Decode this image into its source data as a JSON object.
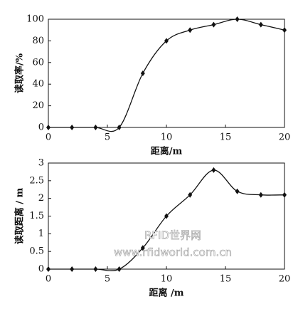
{
  "chart_data": [
    {
      "type": "line",
      "ylabel": "读取率/%",
      "xlabel": "距离/m",
      "x": [
        0,
        2,
        4,
        6,
        8,
        10,
        12,
        14,
        16,
        18,
        20
      ],
      "series": [
        {
          "color": "#111111",
          "values": [
            0,
            0,
            0,
            0,
            50,
            80,
            90,
            95,
            100,
            95,
            90
          ]
        }
      ],
      "xlim": [
        0,
        20
      ],
      "xticks": [
        0,
        5,
        10,
        15,
        20
      ],
      "ylim": [
        0,
        100
      ],
      "yticks": [
        0,
        20,
        40,
        60,
        80,
        100
      ]
    },
    {
      "type": "line",
      "ylabel": "读取距离 / m",
      "xlabel": "距离 /m",
      "x": [
        0,
        2,
        4,
        6,
        8,
        10,
        12,
        14,
        16,
        18,
        20
      ],
      "series": [
        {
          "color": "#111111",
          "values": [
            0,
            0,
            0,
            0,
            0.6,
            1.5,
            2.1,
            2.8,
            2.2,
            2.1,
            2.1
          ]
        }
      ],
      "xlim": [
        0,
        20
      ],
      "xticks": [
        0,
        5,
        10,
        15,
        20
      ],
      "ylim": [
        0,
        3
      ],
      "yticks": [
        0,
        0.5,
        1,
        1.5,
        2,
        2.5,
        3
      ],
      "watermark": [
        "RFID世界网",
        "www.rfidworld.com.cn"
      ]
    }
  ]
}
